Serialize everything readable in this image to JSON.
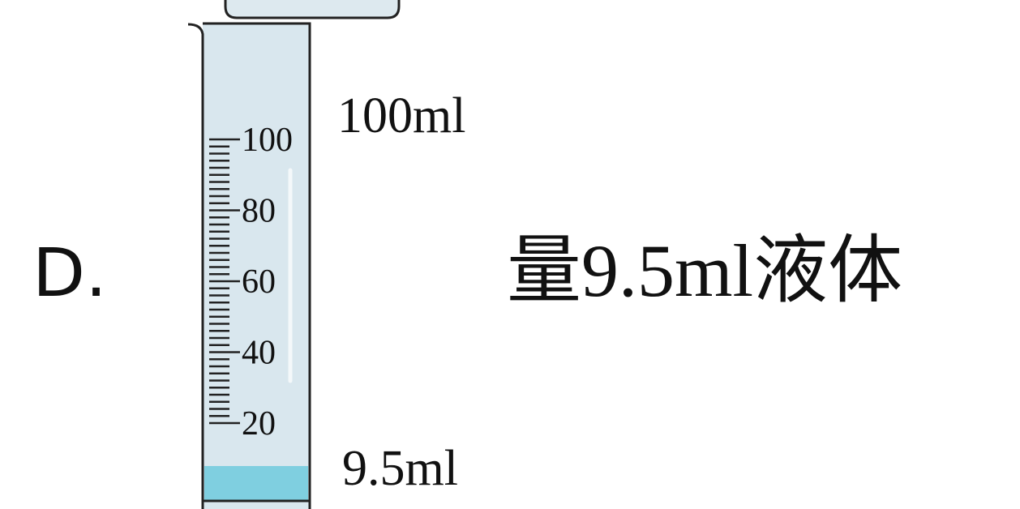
{
  "option": "D.",
  "cylinder": {
    "scale_labels": [
      100,
      80,
      60,
      40,
      20
    ]
  },
  "annotations": {
    "top": "100ml",
    "bottom": "9.5ml"
  },
  "caption": "量9.5ml液体"
}
